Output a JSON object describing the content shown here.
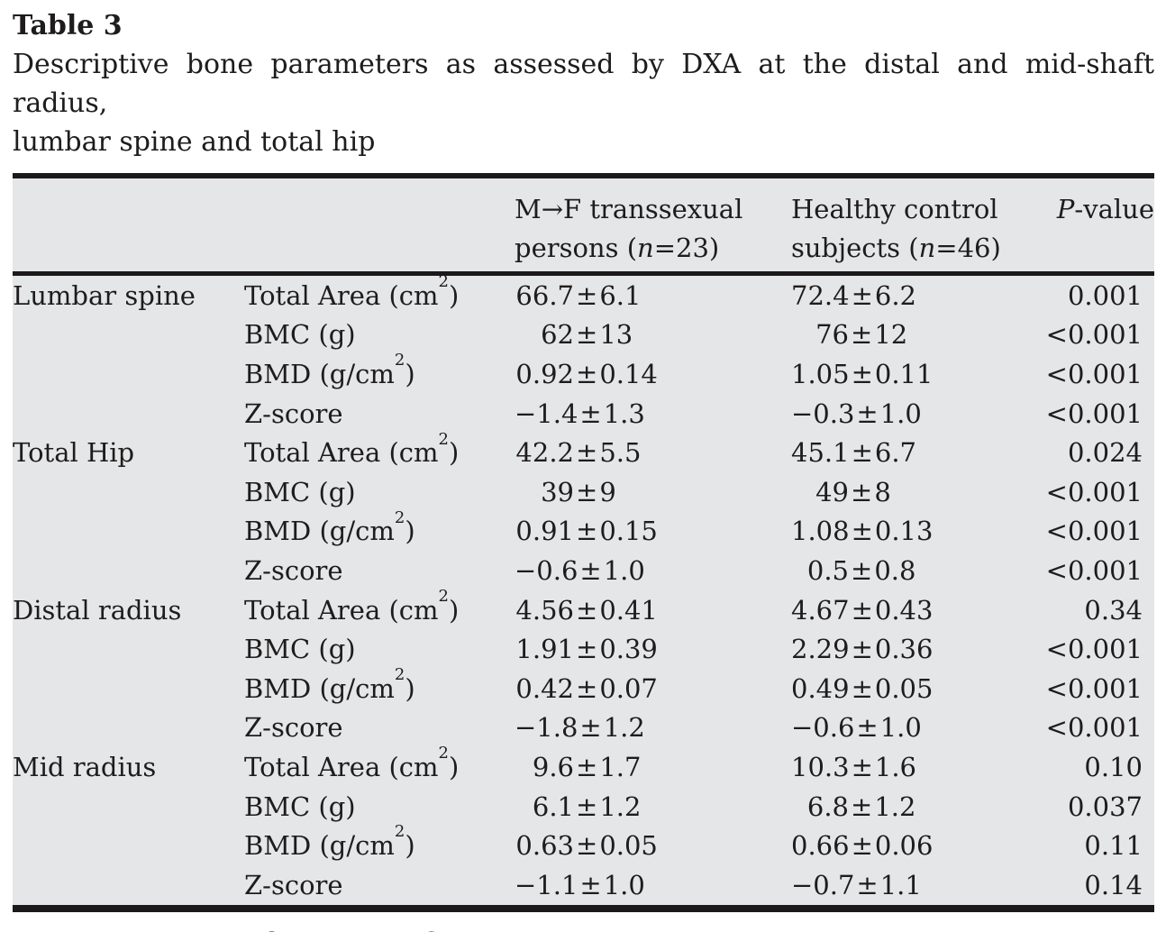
{
  "page": {
    "title": "Table 3",
    "caption_line1": "Descriptive bone parameters as assessed by DXA at the distal and mid-shaft radius,",
    "caption_line2": "lumbar spine and total hip",
    "footnote": "Data are presented as mean±S.D."
  },
  "table": {
    "background_color": "#e5e6e7",
    "rule_color": "#1b1919",
    "pm_symbol": "±",
    "header": {
      "mf": {
        "line1": "M→F transsexual",
        "line2_prefix": "persons (",
        "line2_italic": "n",
        "line2_suffix": "=23)"
      },
      "hc": {
        "line1": "Healthy control",
        "line2_prefix": "subjects (",
        "line2_italic": "n",
        "line2_suffix": "=46)"
      },
      "p": {
        "italic": "P",
        "rest": "-value"
      }
    },
    "rows": [
      {
        "group": "Lumbar spine",
        "param_pre": "Total Area (cm",
        "param_sup": "2",
        "param_post": ")",
        "mf_pre": "66.7",
        "mf_post": "6.1",
        "hc_pre": "72.4",
        "hc_post": "6.2",
        "p": "0.001"
      },
      {
        "group": "",
        "param_pre": "BMC (g)",
        "param_sup": "",
        "param_post": "",
        "mf_pre": "62",
        "mf_post": "13",
        "hc_pre": "76",
        "hc_post": "12",
        "p": "<0.001"
      },
      {
        "group": "",
        "param_pre": "BMD (g/cm",
        "param_sup": "2",
        "param_post": ")",
        "mf_pre": "0.92",
        "mf_post": "0.14",
        "hc_pre": "1.05",
        "hc_post": "0.11",
        "p": "<0.001"
      },
      {
        "group": "",
        "param_pre": "Z-score",
        "param_sup": "",
        "param_post": "",
        "mf_pre": "−1.4",
        "mf_post": "1.3",
        "hc_pre": "−0.3",
        "hc_post": "1.0",
        "p": "<0.001"
      },
      {
        "group": "Total Hip",
        "param_pre": "Total Area (cm",
        "param_sup": "2",
        "param_post": ")",
        "mf_pre": "42.2",
        "mf_post": "5.5",
        "hc_pre": "45.1",
        "hc_post": "6.7",
        "p": "0.024"
      },
      {
        "group": "",
        "param_pre": "BMC (g)",
        "param_sup": "",
        "param_post": "",
        "mf_pre": "39",
        "mf_post": "9",
        "hc_pre": "49",
        "hc_post": "8",
        "p": "<0.001"
      },
      {
        "group": "",
        "param_pre": "BMD (g/cm",
        "param_sup": "2",
        "param_post": ")",
        "mf_pre": "0.91",
        "mf_post": "0.15",
        "hc_pre": "1.08",
        "hc_post": "0.13",
        "p": "<0.001"
      },
      {
        "group": "",
        "param_pre": "Z-score",
        "param_sup": "",
        "param_post": "",
        "mf_pre": "−0.6",
        "mf_post": "1.0",
        "hc_pre": "0.5",
        "hc_post": "0.8",
        "p": "<0.001"
      },
      {
        "group": "Distal radius",
        "param_pre": "Total Area (cm",
        "param_sup": "2",
        "param_post": ")",
        "mf_pre": "4.56",
        "mf_post": "0.41",
        "hc_pre": "4.67",
        "hc_post": "0.43",
        "p": "0.34"
      },
      {
        "group": "",
        "param_pre": "BMC (g)",
        "param_sup": "",
        "param_post": "",
        "mf_pre": "1.91",
        "mf_post": "0.39",
        "hc_pre": "2.29",
        "hc_post": "0.36",
        "p": "<0.001"
      },
      {
        "group": "",
        "param_pre": "BMD (g/cm",
        "param_sup": "2",
        "param_post": ")",
        "mf_pre": "0.42",
        "mf_post": "0.07",
        "hc_pre": "0.49",
        "hc_post": "0.05",
        "p": "<0.001"
      },
      {
        "group": "",
        "param_pre": "Z-score",
        "param_sup": "",
        "param_post": "",
        "mf_pre": "−1.8",
        "mf_post": "1.2",
        "hc_pre": "−0.6",
        "hc_post": "1.0",
        "p": "<0.001"
      },
      {
        "group": "Mid radius",
        "param_pre": "Total Area (cm",
        "param_sup": "2",
        "param_post": ")",
        "mf_pre": "9.6",
        "mf_post": "1.7",
        "hc_pre": "10.3",
        "hc_post": "1.6",
        "p": "0.10"
      },
      {
        "group": "",
        "param_pre": "BMC (g)",
        "param_sup": "",
        "param_post": "",
        "mf_pre": "6.1",
        "mf_post": "1.2",
        "hc_pre": "6.8",
        "hc_post": "1.2",
        "p": "0.037"
      },
      {
        "group": "",
        "param_pre": "BMD (g/cm",
        "param_sup": "2",
        "param_post": ")",
        "mf_pre": "0.63",
        "mf_post": "0.05",
        "hc_pre": "0.66",
        "hc_post": "0.06",
        "p": "0.11"
      },
      {
        "group": "",
        "param_pre": "Z-score",
        "param_sup": "",
        "param_post": "",
        "mf_pre": "−1.1",
        "mf_post": "1.0",
        "hc_pre": "−0.7",
        "hc_post": "1.1",
        "p": "0.14"
      }
    ]
  }
}
